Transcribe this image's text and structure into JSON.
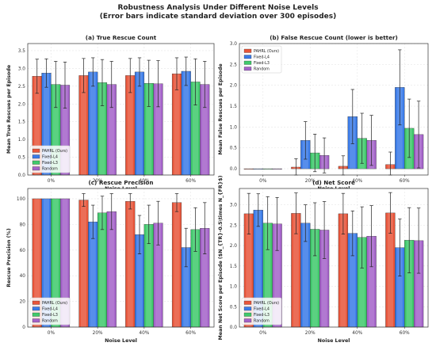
{
  "figure": {
    "title_line1": "Robustness Analysis Under Different Noise Levels",
    "title_line2": "(Error bars indicate standard deviation over 300 episodes)"
  },
  "colors": {
    "PAHRL (Ours)": "#e8553a",
    "Fixed-L4": "#3a7be8",
    "Fixed-L3": "#3fc96b",
    "Random": "#a462c9",
    "error_bar": "#222222",
    "grid": "#e6e6e6"
  },
  "chart_data": [
    {
      "type": "bar",
      "id": "a",
      "title": "(a) True Rescue Count",
      "xlabel": "Noise Level",
      "ylabel": "Mean True Rescues per Episode",
      "categories": [
        "0%",
        "20%",
        "40%",
        "60%"
      ],
      "ylim": [
        0,
        3.7
      ],
      "yticks": [
        "0.0",
        "0.5",
        "1.0",
        "1.5",
        "2.0",
        "2.5",
        "3.0",
        "3.5"
      ],
      "legend_position": "lower-left",
      "grid": true,
      "series": [
        {
          "name": "PAHRL (Ours)",
          "values": [
            2.78,
            2.8,
            2.8,
            2.85
          ],
          "errors": [
            0.48,
            0.48,
            0.48,
            0.45
          ]
        },
        {
          "name": "Fixed-L4",
          "values": [
            2.87,
            2.9,
            2.9,
            2.92
          ],
          "errors": [
            0.4,
            0.4,
            0.4,
            0.4
          ]
        },
        {
          "name": "Fixed-L3",
          "values": [
            2.55,
            2.6,
            2.58,
            2.62
          ],
          "errors": [
            0.65,
            0.65,
            0.65,
            0.65
          ]
        },
        {
          "name": "Random",
          "values": [
            2.53,
            2.55,
            2.57,
            2.55
          ],
          "errors": [
            0.65,
            0.65,
            0.65,
            0.65
          ]
        }
      ]
    },
    {
      "type": "bar",
      "id": "b",
      "title": "(b) False Rescue Count (lower is better)",
      "xlabel": "Noise Level",
      "ylabel": "Mean False Rescues per Episode",
      "categories": [
        "0%",
        "20%",
        "40%",
        "60%"
      ],
      "ylim": [
        -0.15,
        3.0
      ],
      "yticks": [
        "0.0",
        "0.5",
        "1.0",
        "1.5",
        "2.0",
        "2.5",
        "3.0"
      ],
      "legend_position": "top-left",
      "grid": true,
      "series": [
        {
          "name": "PAHRL (Ours)",
          "values": [
            0.0,
            0.04,
            0.06,
            0.1
          ],
          "errors": [
            0.0,
            0.2,
            0.25,
            0.3
          ]
        },
        {
          "name": "Fixed-L4",
          "values": [
            0.0,
            0.68,
            1.25,
            1.95
          ],
          "errors": [
            0.0,
            0.45,
            0.65,
            0.9
          ]
        },
        {
          "name": "Fixed-L3",
          "values": [
            0.0,
            0.38,
            0.73,
            0.97
          ],
          "errors": [
            0.0,
            0.45,
            0.6,
            0.7
          ]
        },
        {
          "name": "Random",
          "values": [
            0.0,
            0.32,
            0.68,
            0.82
          ],
          "errors": [
            0.0,
            0.42,
            0.6,
            0.8
          ]
        }
      ]
    },
    {
      "type": "bar",
      "id": "c",
      "title": "(c) Rescue Precision",
      "xlabel": "Noise Level",
      "ylabel": "Rescue Precision (%)",
      "categories": [
        "0%",
        "20%",
        "40%",
        "60%"
      ],
      "ylim": [
        0,
        108
      ],
      "yticks": [
        "0",
        "20",
        "40",
        "60",
        "80",
        "100"
      ],
      "legend_position": "lower-left",
      "grid": true,
      "series": [
        {
          "name": "PAHRL (Ours)",
          "values": [
            100,
            99,
            98,
            97
          ],
          "errors": [
            0,
            5,
            6,
            7
          ]
        },
        {
          "name": "Fixed-L4",
          "values": [
            100,
            82,
            72,
            62
          ],
          "errors": [
            0,
            13,
            15,
            15
          ]
        },
        {
          "name": "Fixed-L3",
          "values": [
            100,
            89,
            80,
            76
          ],
          "errors": [
            0,
            13,
            15,
            17
          ]
        },
        {
          "name": "Random",
          "values": [
            100,
            90,
            81,
            77
          ],
          "errors": [
            0,
            14,
            17,
            20
          ]
        }
      ]
    },
    {
      "type": "bar",
      "id": "d",
      "title": "(d) Net Score",
      "xlabel": "Noise Level",
      "ylabel": "Mean Net Score per Episode ($N_{TR}-0.5\\times N_{FR}$)",
      "categories": [
        "0%",
        "20%",
        "40%",
        "60%"
      ],
      "ylim": [
        0,
        3.4
      ],
      "yticks": [
        "0.0",
        "0.5",
        "1.0",
        "1.5",
        "2.0",
        "2.5",
        "3.0"
      ],
      "legend_position": "lower-left",
      "grid": true,
      "series": [
        {
          "name": "PAHRL (Ours)",
          "values": [
            2.78,
            2.79,
            2.78,
            2.8
          ],
          "errors": [
            0.5,
            0.5,
            0.5,
            0.5
          ]
        },
        {
          "name": "Fixed-L4",
          "values": [
            2.87,
            2.55,
            2.3,
            1.95
          ],
          "errors": [
            0.4,
            0.45,
            0.55,
            0.7
          ]
        },
        {
          "name": "Fixed-L3",
          "values": [
            2.55,
            2.4,
            2.2,
            2.13
          ],
          "errors": [
            0.65,
            0.65,
            0.75,
            0.8
          ]
        },
        {
          "name": "Random",
          "values": [
            2.53,
            2.38,
            2.23,
            2.12
          ],
          "errors": [
            0.65,
            0.7,
            0.75,
            0.8
          ]
        }
      ]
    }
  ]
}
